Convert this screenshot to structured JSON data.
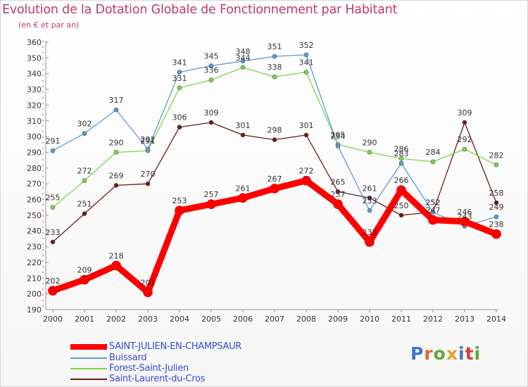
{
  "title": "Evolution de la Dotation Globale de Fonctionnement par Habitant",
  "subtitle": "(en € et par an)",
  "brand": "Proxiti",
  "chart_data": {
    "type": "line",
    "title": "Evolution de la Dotation Globale de Fonctionnement par Habitant",
    "ylabel": "(en € et par an)",
    "xlabel": "",
    "x": [
      "2000",
      "2001",
      "2002",
      "2003",
      "2004",
      "2005",
      "2006",
      "2007",
      "2008",
      "2009",
      "2010",
      "2011",
      "2012",
      "2013",
      "2014"
    ],
    "ylim": [
      190,
      360
    ],
    "yticks": [
      190,
      200,
      210,
      220,
      230,
      240,
      250,
      260,
      270,
      280,
      290,
      300,
      310,
      320,
      330,
      340,
      350,
      360
    ],
    "grid": false,
    "legend_position": "bottom-left",
    "series": [
      {
        "name": "SAINT-JULIEN-EN-CHAMPSAUR",
        "color": "#ff0000",
        "values": [
          202,
          209,
          218,
          201,
          253,
          257,
          261,
          267,
          272,
          257,
          233,
          266,
          247,
          246,
          238
        ],
        "labels": [
          "202",
          "209",
          "218",
          "201",
          "253",
          "257",
          "261",
          "267",
          "272",
          "257",
          "233",
          "266",
          "247",
          "246",
          "238"
        ]
      },
      {
        "name": "Buissard",
        "color": "#5b9bd5",
        "values": [
          291,
          302,
          317,
          292,
          341,
          345,
          348,
          351,
          352,
          294,
          253,
          283,
          252,
          243,
          249
        ],
        "labels": [
          "291",
          "302",
          "317",
          "292",
          "341",
          "345",
          "348",
          "351",
          "352",
          "294",
          "253",
          "283",
          "252",
          "243",
          "249"
        ]
      },
      {
        "name": "Forest-Saint-Julien",
        "color": "#7fd44a",
        "values": [
          255,
          272,
          290,
          291,
          331,
          336,
          344,
          338,
          341,
          295,
          290,
          286,
          284,
          292,
          282
        ],
        "labels": [
          "255",
          "272",
          "290",
          "291",
          "331",
          "336",
          "344",
          "338",
          "341",
          "295",
          "290",
          "286",
          "284",
          "292",
          "282"
        ]
      },
      {
        "name": "Saint-Laurent-du-Cros",
        "color": "#6b1a1a",
        "values": [
          233,
          251,
          269,
          270,
          306,
          309,
          301,
          298,
          301,
          265,
          261,
          250,
          252,
          309,
          258
        ],
        "labels": [
          "233",
          "251",
          "269",
          "270",
          "306",
          "309",
          "301",
          "298",
          "301",
          "265",
          "261",
          "250",
          "252",
          "309",
          "258"
        ]
      }
    ]
  }
}
